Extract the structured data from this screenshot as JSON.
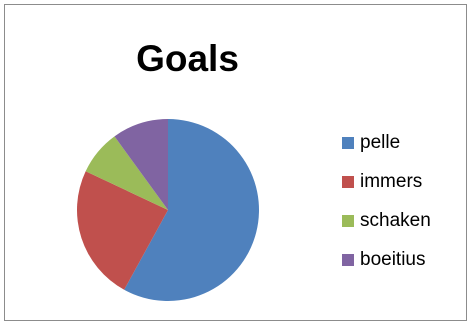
{
  "chart_data": {
    "type": "pie",
    "title": "Goals",
    "categories": [
      "pelle",
      "immers",
      "schaken",
      "boeitius"
    ],
    "values": [
      58,
      24,
      8,
      10
    ],
    "colors": [
      "#4f81bd",
      "#c0504d",
      "#9bbb59",
      "#8064a2"
    ],
    "legend_position": "right",
    "start_angle_deg": 0,
    "direction": "clockwise"
  }
}
